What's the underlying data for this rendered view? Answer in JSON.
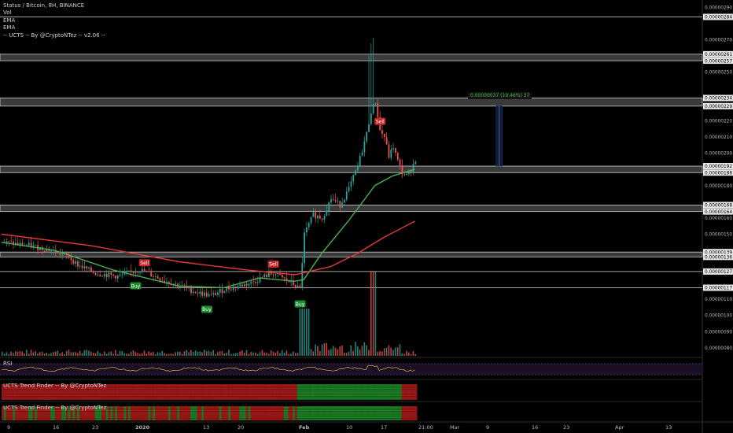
{
  "chart_data": {
    "type": "candlestick",
    "title": "Status / Bitcoin, 8H, BINANCE",
    "indicators": [
      "Vol",
      "EMA",
      "EMA",
      "-- UCTS -- By @CryptoNTez -- v2.06 --"
    ],
    "price_axis": {
      "min": 7.5e-07,
      "max": 2.92e-06,
      "labels": [
        "0.00000290",
        "0.00000270",
        "0.00000250",
        "0.00000220",
        "0.00000210",
        "0.00000200",
        "0.00000180",
        "0.00000160",
        "0.00000150",
        "0.00000110",
        "0.00000100",
        "0.00000090",
        "0.00000080"
      ],
      "highlighted_levels": [
        "0.00000284",
        "0.00000261",
        "0.00000257",
        "0.00000234",
        "0.00000229",
        "0.00000192",
        "0.00000188",
        "0.00000168",
        "0.00000164",
        "0.00000139",
        "0.00000136",
        "0.00000127",
        "0.00000117"
      ]
    },
    "x_axis_labels": [
      "9",
      "16",
      "23",
      "2020",
      "13",
      "20",
      "Feb",
      "10",
      "17",
      "21:00",
      "Mar",
      "9",
      "16",
      "23",
      "Apr",
      "13"
    ],
    "close_path": [
      [
        0,
        1.45e-06
      ],
      [
        6,
        1.43e-06
      ],
      [
        11,
        1.4e-06
      ],
      [
        15,
        1.36e-06
      ],
      [
        17,
        1.31e-06
      ],
      [
        21,
        1.26e-06
      ],
      [
        26,
        1.24e-06
      ],
      [
        31,
        1.28e-06
      ],
      [
        36,
        1.22e-06
      ],
      [
        40,
        1.18e-06
      ],
      [
        44,
        1.14e-06
      ],
      [
        47,
        1.12e-06
      ],
      [
        50,
        1.16e-06
      ],
      [
        53,
        1.18e-06
      ],
      [
        56,
        1.2e-06
      ],
      [
        59,
        1.24e-06
      ],
      [
        61,
        1.26e-06
      ],
      [
        63,
        1.23e-06
      ],
      [
        65,
        1.2e-06
      ],
      [
        66,
        1.18e-06
      ],
      [
        67,
        1.16e-06
      ],
      [
        68,
        1.5e-06
      ],
      [
        70,
        1.62e-06
      ],
      [
        72,
        1.6e-06
      ],
      [
        74,
        1.72e-06
      ],
      [
        76,
        1.68e-06
      ],
      [
        78,
        1.78e-06
      ],
      [
        80,
        1.92e-06
      ],
      [
        82,
        2.12e-06
      ],
      [
        83,
        2.26e-06
      ],
      [
        84,
        2.32e-06
      ],
      [
        85,
        2.14e-06
      ],
      [
        86,
        2.1e-06
      ],
      [
        87,
        1.98e-06
      ],
      [
        88,
        2.04e-06
      ],
      [
        89,
        1.95e-06
      ],
      [
        90,
        1.88e-06
      ],
      [
        91,
        1.86e-06
      ],
      [
        92,
        1.9e-06
      ],
      [
        93,
        1.96e-06
      ]
    ],
    "ema_fast": [
      [
        0,
        1.45e-06
      ],
      [
        12,
        1.4e-06
      ],
      [
        25,
        1.28e-06
      ],
      [
        40,
        1.18e-06
      ],
      [
        50,
        1.17e-06
      ],
      [
        58,
        1.23e-06
      ],
      [
        66,
        1.21e-06
      ],
      [
        68,
        1.22e-06
      ],
      [
        72,
        1.38e-06
      ],
      [
        78,
        1.58e-06
      ],
      [
        84,
        1.8e-06
      ],
      [
        88,
        1.86e-06
      ],
      [
        93,
        1.9e-06
      ]
    ],
    "ema_slow": [
      [
        0,
        1.5e-06
      ],
      [
        20,
        1.43e-06
      ],
      [
        40,
        1.33e-06
      ],
      [
        55,
        1.28e-06
      ],
      [
        66,
        1.25e-06
      ],
      [
        74,
        1.3e-06
      ],
      [
        80,
        1.38e-06
      ],
      [
        86,
        1.48e-06
      ],
      [
        93,
        1.58e-06
      ]
    ],
    "signals": [
      {
        "label": "Sell",
        "index": 32
      },
      {
        "label": "Buy",
        "index": 30
      },
      {
        "label": "Buy",
        "index": 46
      },
      {
        "label": "Sell",
        "index": 61
      },
      {
        "label": "Buy",
        "index": 67
      },
      {
        "label": "Sell",
        "index": 85
      }
    ],
    "measure_label": "0.00000037 (19.46%) 37",
    "rsi_label": "RSI",
    "trend_finder_labels": [
      "UCTS Trend Finder -- By @CryptoNTez",
      "UCTS Trend Finder -- By @CryptoNTez"
    ],
    "colors": {
      "up": "#26a69a",
      "down": "#ef5350",
      "ema_fast": "#4caf50",
      "ema_slow": "#e53935",
      "buy": "#1b8f2f",
      "sell": "#c62828",
      "rsi": "#d4a94a",
      "band": "#7e57c2"
    }
  }
}
